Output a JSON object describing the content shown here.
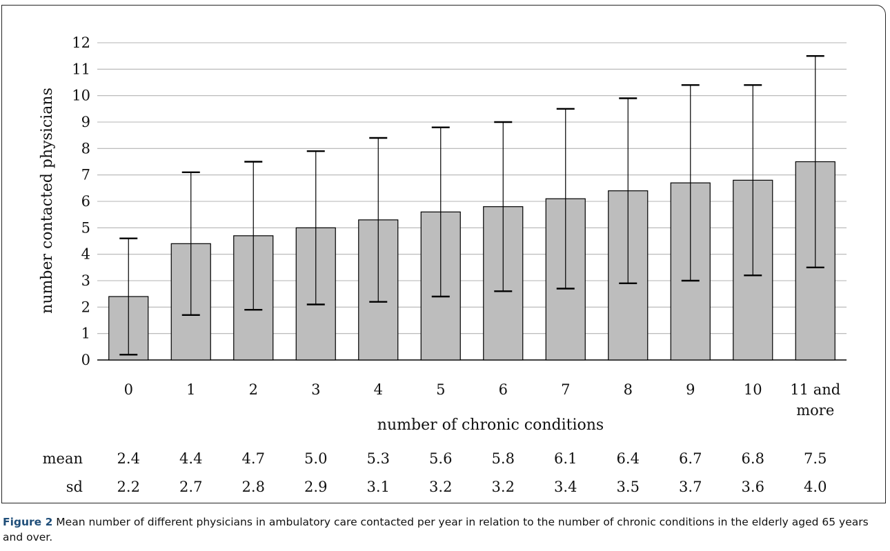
{
  "chart_data": {
    "type": "bar",
    "categories": [
      "0",
      "1",
      "2",
      "3",
      "4",
      "5",
      "6",
      "7",
      "8",
      "9",
      "10",
      "11 and more"
    ],
    "category_lines": [
      [
        "0"
      ],
      [
        "1"
      ],
      [
        "2"
      ],
      [
        "3"
      ],
      [
        "4"
      ],
      [
        "5"
      ],
      [
        "6"
      ],
      [
        "7"
      ],
      [
        "8"
      ],
      [
        "9"
      ],
      [
        "10"
      ],
      [
        "11 and",
        "more"
      ]
    ],
    "values": [
      2.4,
      4.4,
      4.7,
      5.0,
      5.3,
      5.6,
      5.8,
      6.1,
      6.4,
      6.7,
      6.8,
      7.5
    ],
    "error_bars": {
      "lower": [
        0.2,
        1.7,
        1.9,
        2.1,
        2.2,
        2.4,
        2.6,
        2.7,
        2.9,
        3.0,
        3.2,
        3.5
      ],
      "upper": [
        4.6,
        7.1,
        7.5,
        7.9,
        8.4,
        8.8,
        9.0,
        9.5,
        9.9,
        10.4,
        10.4,
        11.5
      ]
    },
    "xlabel": "number of chronic conditions",
    "ylabel": "number contacted physicians",
    "ylim": [
      0,
      12
    ],
    "yticks": [
      "0",
      "1",
      "2",
      "3",
      "4",
      "5",
      "6",
      "7",
      "8",
      "9",
      "10",
      "11",
      "12"
    ],
    "grid": true,
    "bar_color": "#bdbdbd",
    "bar_edge_color": "#000000",
    "grid_color": "#b3b3b3",
    "table": {
      "rows": [
        {
          "label": "mean",
          "values": [
            "2.4",
            "4.4",
            "4.7",
            "5.0",
            "5.3",
            "5.6",
            "5.8",
            "6.1",
            "6.4",
            "6.7",
            "6.8",
            "7.5"
          ]
        },
        {
          "label": "sd",
          "values": [
            "2.2",
            "2.7",
            "2.8",
            "2.9",
            "3.1",
            "3.2",
            "3.2",
            "3.4",
            "3.5",
            "3.7",
            "3.6",
            "4.0"
          ]
        }
      ]
    }
  },
  "caption": {
    "label": "Figure 2",
    "text": " Mean number of different physicians in ambulatory care contacted per year in relation to the number of chronic conditions in the elderly aged 65 years and over."
  }
}
